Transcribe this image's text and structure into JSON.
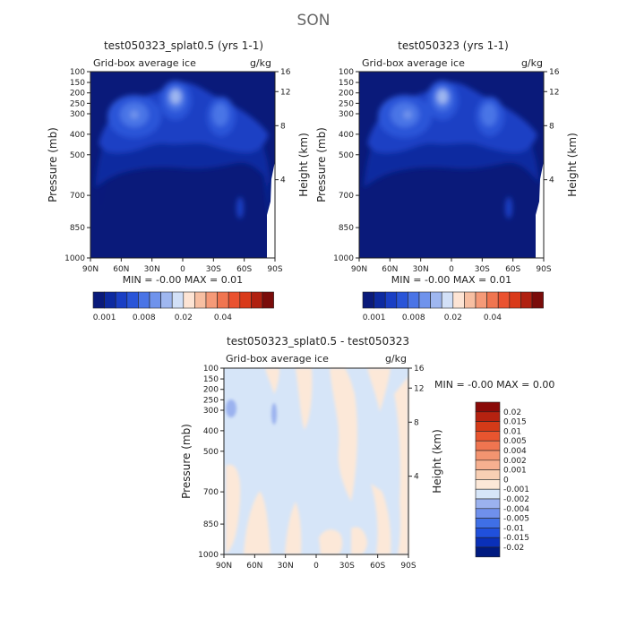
{
  "page_title": "SON",
  "colors": {
    "seq_palette": [
      "#0a1a7a",
      "#0d2aa0",
      "#1a3fc4",
      "#2a55d8",
      "#4a74e6",
      "#6f93ec",
      "#9fb7f0",
      "#d2e0f7",
      "#fde4d4",
      "#f7bfa2",
      "#f59a78",
      "#f07550",
      "#ea5230",
      "#d93a1a",
      "#b02010",
      "#7a0c0a"
    ],
    "diff_palette": [
      "#001a80",
      "#0a30b8",
      "#2050dc",
      "#3f6fe6",
      "#6f90ec",
      "#9bb2ef",
      "#d6e5f8",
      "#fce8d8",
      "#f8cfb4",
      "#f6b090",
      "#f39470",
      "#ef7550",
      "#e8552f",
      "#d43a18",
      "#b52210",
      "#8a0a08"
    ]
  },
  "chart_data": [
    {
      "type": "heatmap",
      "panel": "top-left",
      "title": "test050323_splat0.5 (yrs 1-1)",
      "subtitle_left": "Grid-box average ice",
      "subtitle_right": "g/kg",
      "xlabel": "",
      "ylabel": "Pressure (mb)",
      "ylabel_right": "Height (km)",
      "x_ticks": [
        "90N",
        "60N",
        "30N",
        "0",
        "30S",
        "60S",
        "90S"
      ],
      "y_ticks": [
        "100",
        "150",
        "200",
        "250",
        "300",
        "400",
        "500",
        "700",
        "850",
        "1000"
      ],
      "y_ticks_right": [
        "16",
        "12",
        "8",
        "4"
      ],
      "stats": "MIN = -0.00 MAX = 0.01",
      "colorbar_labels": [
        "0.001",
        "0.008",
        "0.02",
        "0.04"
      ]
    },
    {
      "type": "heatmap",
      "panel": "top-right",
      "title": "test050323 (yrs 1-1)",
      "subtitle_left": "Grid-box average ice",
      "subtitle_right": "g/kg",
      "xlabel": "",
      "ylabel": "Pressure (mb)",
      "ylabel_right": "Height (km)",
      "x_ticks": [
        "90N",
        "60N",
        "30N",
        "0",
        "30S",
        "60S",
        "90S"
      ],
      "y_ticks": [
        "100",
        "150",
        "200",
        "250",
        "300",
        "400",
        "500",
        "700",
        "850",
        "1000"
      ],
      "y_ticks_right": [
        "16",
        "12",
        "8",
        "4"
      ],
      "stats": "MIN = -0.00 MAX = 0.01",
      "colorbar_labels": [
        "0.001",
        "0.008",
        "0.02",
        "0.04"
      ]
    },
    {
      "type": "heatmap",
      "panel": "bottom",
      "title": "test050323_splat0.5 - test050323",
      "subtitle_left": "Grid-box average ice",
      "subtitle_right": "g/kg",
      "xlabel": "",
      "ylabel": "Pressure (mb)",
      "ylabel_right": "Height (km)",
      "x_ticks": [
        "90N",
        "60N",
        "30N",
        "0",
        "30S",
        "60S",
        "90S"
      ],
      "y_ticks": [
        "100",
        "150",
        "200",
        "250",
        "300",
        "400",
        "500",
        "700",
        "850",
        "1000"
      ],
      "y_ticks_right": [
        "16",
        "12",
        "8",
        "4"
      ],
      "stats": "MIN = -0.00 MAX = 0.00",
      "colorbar_labels": [
        "0.02",
        "0.015",
        "0.01",
        "0.005",
        "0.004",
        "0.002",
        "0.001",
        "0",
        "-0.001",
        "-0.002",
        "-0.004",
        "-0.005",
        "-0.01",
        "-0.015",
        "-0.02"
      ]
    }
  ]
}
